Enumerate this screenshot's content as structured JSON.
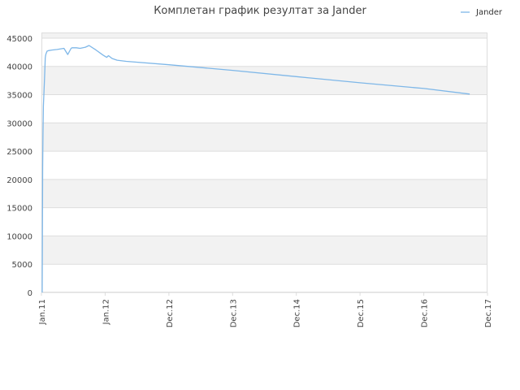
{
  "chart_data": {
    "type": "line",
    "title": "Комплетан график резултат за Jander",
    "xlabel": "",
    "ylabel": "",
    "x_ticks": [
      "Jan.11",
      "Jan.12",
      "Dec.12",
      "Dec.13",
      "Dec.14",
      "Dec.15",
      "Dec.16",
      "Dec.17"
    ],
    "y_ticks": [
      "0",
      "5000",
      "10000",
      "15000",
      "20000",
      "25000",
      "30000",
      "35000",
      "40000",
      "45000"
    ],
    "ylim": [
      0,
      45000
    ],
    "grid": "horizontal bands",
    "legend_position": "top-right",
    "series": [
      {
        "name": "Jander",
        "color": "#7eb7e8",
        "x": [
          "2011-01-05",
          "2011-01-08",
          "2011-01-10",
          "2011-01-12",
          "2011-01-15",
          "2011-01-18",
          "2011-01-20",
          "2011-01-23",
          "2011-01-25",
          "2011-01-28",
          "2011-02-02",
          "2011-02-10",
          "2011-03-01",
          "2011-04-01",
          "2011-05-10",
          "2011-06-01",
          "2011-06-20",
          "2011-06-25",
          "2011-07-20",
          "2011-08-10",
          "2011-09-10",
          "2011-10-01",
          "2011-11-10",
          "2011-12-20",
          "2012-01-10",
          "2012-01-20",
          "2012-02-10",
          "2012-03-10",
          "2012-05-01",
          "2013-01-01",
          "2014-01-01",
          "2015-01-01",
          "2016-01-01",
          "2017-01-01",
          "2017-09-20"
        ],
        "values": [
          0,
          22000,
          28000,
          33000,
          35000,
          37500,
          39000,
          41500,
          42000,
          42300,
          42700,
          42800,
          42900,
          43000,
          43200,
          42100,
          43200,
          43300,
          43300,
          43200,
          43400,
          43700,
          42900,
          42000,
          41600,
          41900,
          41400,
          41100,
          40900,
          40300,
          39300,
          38200,
          37100,
          36100,
          35100
        ]
      }
    ]
  },
  "background": "#ffffff",
  "band_color": "#f2f2f2",
  "grid_color": "#dddddd"
}
